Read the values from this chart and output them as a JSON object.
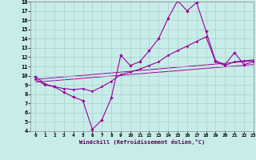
{
  "xlabel": "Windchill (Refroidissement éolien,°C)",
  "ylabel": "",
  "background_color": "#c8ede9",
  "grid_color": "#aacccc",
  "line_color": "#990099",
  "xlim": [
    -0.5,
    23
  ],
  "ylim": [
    4,
    18
  ],
  "xticks": [
    0,
    1,
    2,
    3,
    4,
    5,
    6,
    7,
    8,
    9,
    10,
    11,
    12,
    13,
    14,
    15,
    16,
    17,
    18,
    19,
    20,
    21,
    22,
    23
  ],
  "yticks": [
    4,
    5,
    6,
    7,
    8,
    9,
    10,
    11,
    12,
    13,
    14,
    15,
    16,
    17,
    18
  ],
  "line1_x": [
    0,
    1,
    2,
    3,
    4,
    5,
    6,
    7,
    8,
    9,
    10,
    11,
    12,
    13,
    14,
    15,
    16,
    17,
    18,
    19,
    20,
    21,
    22,
    23
  ],
  "line1_y": [
    9.9,
    9.1,
    8.8,
    8.2,
    7.7,
    7.3,
    4.2,
    5.2,
    7.6,
    12.2,
    11.1,
    11.5,
    12.7,
    14.0,
    16.2,
    18.1,
    17.0,
    17.9,
    14.8,
    11.6,
    11.2,
    12.5,
    11.2,
    11.5
  ],
  "line2_x": [
    0,
    1,
    2,
    3,
    4,
    5,
    6,
    7,
    8,
    9,
    10,
    11,
    12,
    13,
    14,
    15,
    16,
    17,
    18,
    19,
    20,
    21,
    22,
    23
  ],
  "line2_y": [
    9.6,
    9.0,
    8.8,
    8.6,
    8.5,
    8.6,
    8.3,
    8.8,
    9.4,
    10.1,
    10.4,
    10.7,
    11.1,
    11.5,
    12.2,
    12.7,
    13.2,
    13.7,
    14.2,
    11.5,
    11.1,
    11.5,
    11.6,
    11.7
  ],
  "line3_x": [
    0,
    23
  ],
  "line3_y": [
    9.6,
    11.6
  ],
  "line4_x": [
    0,
    23
  ],
  "line4_y": [
    9.3,
    11.2
  ]
}
